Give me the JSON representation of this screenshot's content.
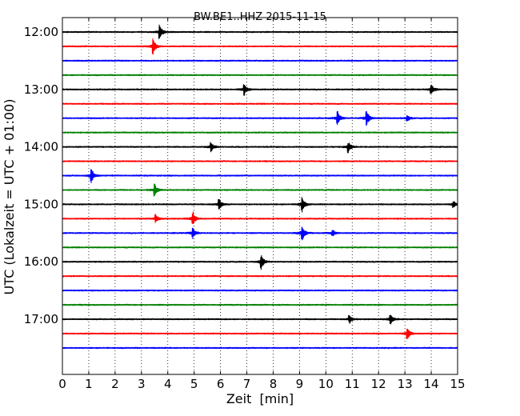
{
  "chart_data": {
    "type": "line",
    "title": "BW.BE1..HHZ 2015-11-15",
    "xlabel": "Zeit  [min]",
    "ylabel": "UTC (Lokalzeit = UTC + 01:00)",
    "xlim": [
      0,
      15
    ],
    "x_ticks": [
      "0",
      "1",
      "2",
      "3",
      "4",
      "5",
      "6",
      "7",
      "8",
      "9",
      "10",
      "11",
      "12",
      "13",
      "14",
      "15"
    ],
    "y_tick_labels": [
      "12:00",
      "13:00",
      "14:00",
      "15:00",
      "16:00",
      "17:00"
    ],
    "trace_interval_minutes": 15,
    "color_cycle": [
      "#000000",
      "#ff0000",
      "#0000ff",
      "#008000"
    ],
    "grid": "vertical dotted lines at each minute",
    "traces": [
      {
        "start": "12:00",
        "events": [
          {
            "t": 3.7,
            "amp": 1.0
          }
        ]
      },
      {
        "start": "12:15",
        "events": [
          {
            "t": 3.45,
            "amp": 1.1
          }
        ]
      },
      {
        "start": "12:30",
        "events": []
      },
      {
        "start": "12:45",
        "events": []
      },
      {
        "start": "13:00",
        "events": [
          {
            "t": 6.9,
            "amp": 0.9
          },
          {
            "t": 14.0,
            "amp": 0.8
          }
        ]
      },
      {
        "start": "13:15",
        "events": []
      },
      {
        "start": "13:30",
        "events": [
          {
            "t": 10.45,
            "amp": 1.0
          },
          {
            "t": 11.55,
            "amp": 1.1
          },
          {
            "t": 13.1,
            "amp": 0.4
          }
        ]
      },
      {
        "start": "13:45",
        "events": []
      },
      {
        "start": "14:00",
        "events": [
          {
            "t": 5.65,
            "amp": 0.7
          },
          {
            "t": 10.85,
            "amp": 0.8
          }
        ]
      },
      {
        "start": "14:15",
        "events": []
      },
      {
        "start": "14:30",
        "events": [
          {
            "t": 1.1,
            "amp": 1.0
          }
        ]
      },
      {
        "start": "14:45",
        "events": [
          {
            "t": 3.5,
            "amp": 0.9
          }
        ]
      },
      {
        "start": "15:00",
        "events": [
          {
            "t": 5.95,
            "amp": 0.8
          },
          {
            "t": 9.1,
            "amp": 1.1
          },
          {
            "t": 14.85,
            "amp": 0.5
          }
        ]
      },
      {
        "start": "15:15",
        "events": [
          {
            "t": 3.55,
            "amp": 0.6
          },
          {
            "t": 4.95,
            "amp": 1.1
          }
        ]
      },
      {
        "start": "15:30",
        "events": [
          {
            "t": 4.95,
            "amp": 0.8
          },
          {
            "t": 9.1,
            "amp": 1.4
          },
          {
            "t": 10.25,
            "amp": 0.5
          }
        ]
      },
      {
        "start": "15:45",
        "events": []
      },
      {
        "start": "16:00",
        "events": [
          {
            "t": 7.55,
            "amp": 1.1
          }
        ]
      },
      {
        "start": "16:15",
        "events": []
      },
      {
        "start": "16:30",
        "events": []
      },
      {
        "start": "16:45",
        "events": []
      },
      {
        "start": "17:00",
        "events": [
          {
            "t": 10.9,
            "amp": 0.6
          },
          {
            "t": 12.45,
            "amp": 0.8
          }
        ]
      },
      {
        "start": "17:15",
        "events": [
          {
            "t": 13.1,
            "amp": 0.8
          }
        ]
      },
      {
        "start": "17:30",
        "events": []
      }
    ]
  }
}
